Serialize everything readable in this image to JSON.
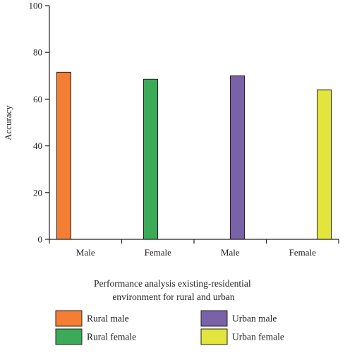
{
  "chart_data": {
    "type": "bar",
    "categories": [
      "Male",
      "Female",
      "Male",
      "Female"
    ],
    "series": [
      {
        "name": "Rural male",
        "color": "#f47f34",
        "values": [
          71.5,
          null,
          null,
          null
        ]
      },
      {
        "name": "Rural female",
        "color": "#3cab57",
        "values": [
          null,
          68.5,
          null,
          null
        ]
      },
      {
        "name": "Urban male",
        "color": "#7a62a8",
        "values": [
          null,
          null,
          70.0,
          null
        ]
      },
      {
        "name": "Urban female",
        "color": "#e3e43c",
        "values": [
          null,
          null,
          null,
          64.0
        ]
      }
    ],
    "xlabel": "Performance analysis existing-residential environment for rural and urban",
    "xlabel_lines": [
      "Performance analysis existing-residential",
      "environment for rural and urban"
    ],
    "ylabel": "Accuracy",
    "ylim": [
      0,
      100
    ],
    "yticks": [
      0,
      20,
      40,
      60,
      80,
      100
    ],
    "grid": false,
    "legend_position": "bottom"
  }
}
